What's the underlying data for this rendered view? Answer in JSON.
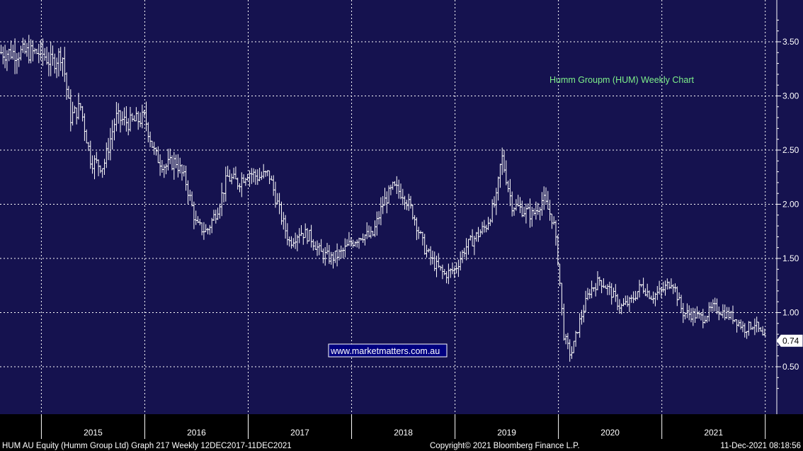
{
  "chart_data": {
    "type": "line",
    "title": "Humm Groupm (HUM) Weekly Chart",
    "watermark": "www.marketmatters.com.au",
    "ylim": [
      0.2,
      3.8
    ],
    "yticks": [
      "3.50",
      "3.00",
      "2.50",
      "2.00",
      "1.50",
      "1.00",
      "0.50"
    ],
    "grid": "dotted",
    "last_value_label": "0.74",
    "years": [
      "2015",
      "2016",
      "2017",
      "2018",
      "2019",
      "2020",
      "2021"
    ],
    "series": [
      {
        "values": [
          [
            2015.0,
            3.4
          ],
          [
            2015.1,
            3.3
          ],
          [
            2015.2,
            3.4
          ],
          [
            2015.28,
            2.8
          ],
          [
            2015.38,
            2.9
          ],
          [
            2015.48,
            2.4
          ],
          [
            2015.6,
            2.35
          ],
          [
            2015.72,
            2.8
          ],
          [
            2015.85,
            2.75
          ],
          [
            2016.0,
            2.8
          ],
          [
            2016.1,
            2.45
          ],
          [
            2016.2,
            2.35
          ],
          [
            2016.3,
            2.4
          ],
          [
            2016.4,
            2.2
          ],
          [
            2016.5,
            1.8
          ],
          [
            2016.6,
            1.75
          ],
          [
            2016.7,
            1.95
          ],
          [
            2016.8,
            2.25
          ],
          [
            2016.9,
            2.2
          ],
          [
            2017.0,
            2.3
          ],
          [
            2017.1,
            2.25
          ],
          [
            2017.2,
            2.28
          ],
          [
            2017.33,
            1.85
          ],
          [
            2017.4,
            1.65
          ],
          [
            2017.5,
            1.75
          ],
          [
            2017.6,
            1.7
          ],
          [
            2017.7,
            1.55
          ],
          [
            2017.8,
            1.5
          ],
          [
            2017.9,
            1.55
          ],
          [
            2018.0,
            1.65
          ],
          [
            2018.1,
            1.72
          ],
          [
            2018.2,
            1.7
          ],
          [
            2018.3,
            2.0
          ],
          [
            2018.4,
            2.15
          ],
          [
            2018.5,
            2.1
          ],
          [
            2018.6,
            1.9
          ],
          [
            2018.7,
            1.6
          ],
          [
            2018.8,
            1.45
          ],
          [
            2018.9,
            1.35
          ],
          [
            2019.0,
            1.4
          ],
          [
            2019.1,
            1.6
          ],
          [
            2019.2,
            1.7
          ],
          [
            2019.3,
            1.8
          ],
          [
            2019.4,
            2.05
          ],
          [
            2019.45,
            2.45
          ],
          [
            2019.55,
            2.0
          ],
          [
            2019.65,
            1.95
          ],
          [
            2019.75,
            1.9
          ],
          [
            2019.85,
            2.05
          ],
          [
            2019.95,
            1.85
          ],
          [
            2020.0,
            1.45
          ],
          [
            2020.05,
            0.8
          ],
          [
            2020.12,
            0.6
          ],
          [
            2020.2,
            0.9
          ],
          [
            2020.3,
            1.2
          ],
          [
            2020.4,
            1.3
          ],
          [
            2020.5,
            1.2
          ],
          [
            2020.6,
            1.05
          ],
          [
            2020.7,
            1.1
          ],
          [
            2020.8,
            1.25
          ],
          [
            2020.9,
            1.15
          ],
          [
            2021.0,
            1.2
          ],
          [
            2021.1,
            1.3
          ],
          [
            2021.2,
            1.0
          ],
          [
            2021.3,
            0.98
          ],
          [
            2021.4,
            0.95
          ],
          [
            2021.5,
            1.05
          ],
          [
            2021.6,
            1.0
          ],
          [
            2021.7,
            0.95
          ],
          [
            2021.8,
            0.85
          ],
          [
            2021.9,
            0.9
          ],
          [
            2021.97,
            0.78
          ],
          [
            2022.0,
            0.74
          ]
        ]
      }
    ]
  },
  "footer": {
    "left": "HUM AU Equity (Humm Group Ltd) Graph 217  Weekly 12DEC2017-11DEC2021",
    "center": "Copyright© 2021 Bloomberg Finance L.P.",
    "right": "11-Dec-2021 08:18:56"
  },
  "colors": {
    "background": "#15124f",
    "grid": "#ffffff",
    "line": "#ffffff",
    "title": "#7ef08a",
    "watermark_bg": "#000080",
    "axis_bg": "#000000"
  }
}
